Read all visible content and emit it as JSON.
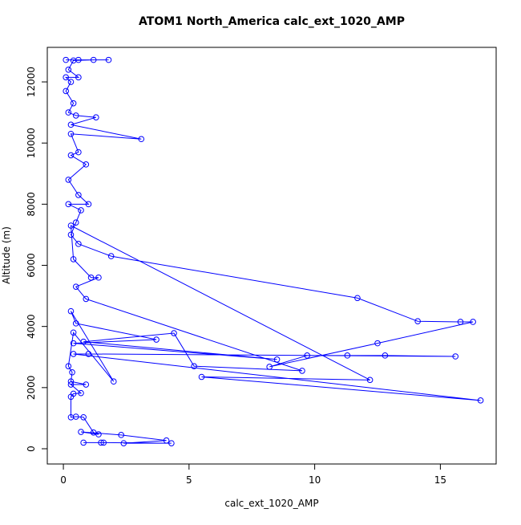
{
  "chart_data": {
    "type": "line",
    "title": "ATOM1 North_America calc_ext_1020_AMP",
    "x_label": "calc_ext_1020_AMP",
    "y_label": "Altitude (m)",
    "xlim": [
      -0.64,
      17.22
    ],
    "ylim": [
      -499,
      13130
    ],
    "xticks": [
      0,
      5,
      10,
      15
    ],
    "yticks": [
      0,
      2000,
      4000,
      6000,
      8000,
      10000,
      12000
    ],
    "series": [
      {
        "color": "#0000ff",
        "x": [
          0.1,
          0.6,
          1.8,
          1.2,
          0.4,
          0.2,
          0.6,
          0.1,
          0.3,
          0.1,
          0.4,
          0.2,
          0.5,
          1.3,
          0.3,
          3.1,
          0.3,
          0.6,
          0.3,
          0.9,
          0.2,
          0.6,
          1.0,
          0.2,
          0.7,
          0.5,
          0.3,
          0.6,
          1.9,
          11.7,
          14.1,
          15.8,
          16.3,
          12.5,
          8.2,
          9.7,
          11.3,
          12.8,
          15.6,
          1.0,
          0.4,
          16.6,
          5.5,
          12.2,
          0.3,
          0.4,
          1.1,
          1.4,
          0.5,
          0.9,
          9.5,
          5.2,
          4.4,
          0.8,
          8.5,
          0.4,
          3.7,
          0.5,
          0.3,
          2.0,
          0.4,
          0.2,
          0.35,
          0.3,
          0.9,
          0.3,
          0.7,
          0.4,
          0.3,
          0.3,
          0.5,
          0.8,
          1.2,
          1.4,
          0.7,
          2.3,
          4.1,
          2.4,
          4.3,
          1.6,
          1.5,
          0.8
        ],
        "values": [
          12720,
          12720,
          12720,
          12720,
          12700,
          12400,
          12150,
          12150,
          12000,
          11700,
          11300,
          11000,
          10900,
          10840,
          10600,
          10130,
          10300,
          9700,
          9600,
          9300,
          8800,
          8300,
          8000,
          8000,
          7800,
          7400,
          7000,
          6700,
          6300,
          4930,
          4170,
          4150,
          4150,
          3450,
          2680,
          3050,
          3050,
          3050,
          3020,
          3100,
          3100,
          1580,
          2350,
          2250,
          7300,
          6200,
          5600,
          5600,
          5300,
          4900,
          2550,
          2700,
          3780,
          3500,
          2920,
          3450,
          3570,
          4100,
          4500,
          2200,
          3800,
          2700,
          2500,
          2200,
          2100,
          2100,
          1820,
          1800,
          1700,
          1030,
          1050,
          1030,
          530,
          470,
          550,
          450,
          270,
          180,
          180,
          200,
          200,
          200
        ]
      }
    ]
  }
}
